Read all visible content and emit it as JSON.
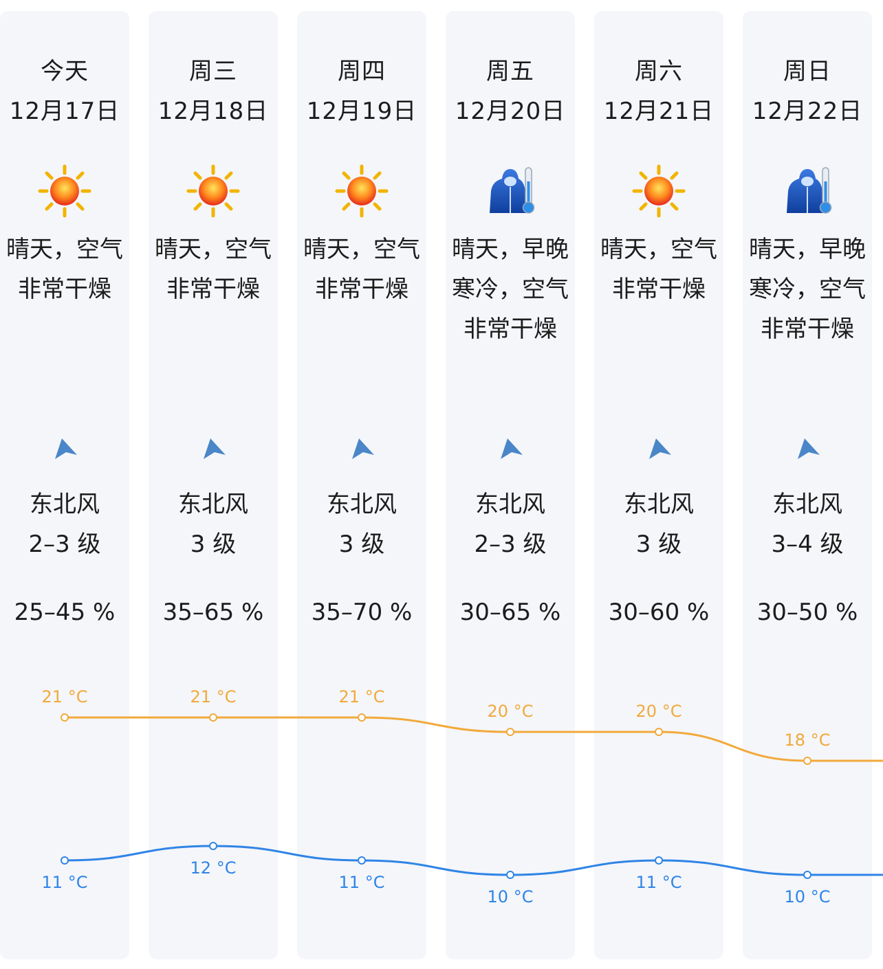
{
  "days": [
    {
      "weekday": "今天",
      "date": "12月17日",
      "icon": "sun-icon",
      "desc_lines": [
        "晴天，空气",
        "非常干燥"
      ],
      "wind_dir": "东北风",
      "wind_level": "2–3 级",
      "humidity": "25–45 %",
      "high": "21 °C",
      "low": "11 °C"
    },
    {
      "weekday": "周三",
      "date": "12月18日",
      "icon": "sun-icon",
      "desc_lines": [
        "晴天，空气",
        "非常干燥"
      ],
      "wind_dir": "东北风",
      "wind_level": "3 级",
      "humidity": "35–65 %",
      "high": "21 °C",
      "low": "12 °C"
    },
    {
      "weekday": "周四",
      "date": "12月19日",
      "icon": "sun-icon",
      "desc_lines": [
        "晴天，空气",
        "非常干燥"
      ],
      "wind_dir": "东北风",
      "wind_level": "3 级",
      "humidity": "35–70 %",
      "high": "21 °C",
      "low": "11 °C"
    },
    {
      "weekday": "周五",
      "date": "12月20日",
      "icon": "cold-coat-thermometer-icon",
      "desc_lines": [
        "晴天，早晚",
        "寒冷，空气",
        "非常干燥"
      ],
      "wind_dir": "东北风",
      "wind_level": "2–3 级",
      "humidity": "30–65 %",
      "high": "20 °C",
      "low": "10 °C"
    },
    {
      "weekday": "周六",
      "date": "12月21日",
      "icon": "sun-icon",
      "desc_lines": [
        "晴天，空气",
        "非常干燥"
      ],
      "wind_dir": "东北风",
      "wind_level": "3 级",
      "humidity": "30–60 %",
      "high": "20 °C",
      "low": "11 °C"
    },
    {
      "weekday": "周日",
      "date": "12月22日",
      "icon": "cold-coat-thermometer-icon",
      "desc_lines": [
        "晴天，早晚",
        "寒冷，空气",
        "非常干燥"
      ],
      "wind_dir": "东北风",
      "wind_level": "3–4 级",
      "humidity": "30–50 %",
      "high": "18 °C",
      "low": "10 °C"
    }
  ],
  "chart_data": {
    "type": "line",
    "categories": [
      "今天",
      "周三",
      "周四",
      "周五",
      "周六",
      "周日"
    ],
    "series": [
      {
        "values": [
          21,
          21,
          21,
          20,
          20,
          18
        ],
        "color": "#f2a93b"
      },
      {
        "values": [
          11,
          12,
          11,
          10,
          11,
          10
        ],
        "color": "#2f84e6"
      }
    ]
  },
  "colors": {
    "high": "#f2a93b",
    "low": "#2f84e6",
    "arrow": "#4a86c8",
    "column_bg": "#f4f6fa"
  }
}
